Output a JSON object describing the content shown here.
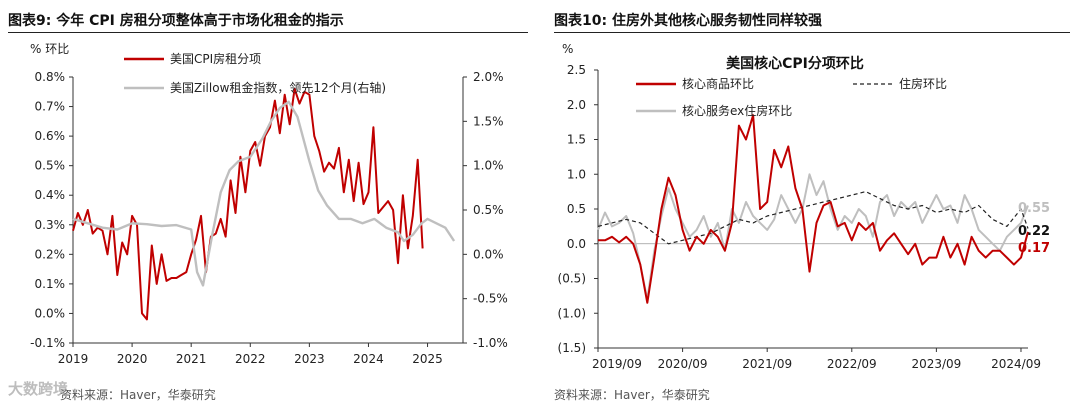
{
  "left": {
    "figure_title": "图表9:  今年 CPI 房租分项整体高于市场化租金的指示",
    "source": "资料来源：Haver，华泰研究",
    "chart_data": {
      "type": "line",
      "title": "",
      "ylabel_left": "% 环比",
      "xlabel": "",
      "x_ticks": [
        "2019",
        "2020",
        "2021",
        "2022",
        "2023",
        "2024",
        "2025"
      ],
      "xlim": [
        2019,
        2025.6
      ],
      "ylim_left": [
        -0.1,
        0.8
      ],
      "ylim_right": [
        -1.0,
        2.0
      ],
      "y_ticks_left": [
        "-0.1%",
        "0.0%",
        "0.1%",
        "0.2%",
        "0.3%",
        "0.4%",
        "0.5%",
        "0.6%",
        "0.7%",
        "0.8%"
      ],
      "y_ticks_right": [
        "-1.0%",
        "-0.5%",
        "0.0%",
        "0.5%",
        "1.0%",
        "1.5%",
        "2.0%"
      ],
      "legend_position": "top-center",
      "series": [
        {
          "name": "美国CPI房租分项",
          "axis": "left",
          "color": "#c00000",
          "x": [
            2019.0,
            2019.083,
            2019.167,
            2019.25,
            2019.333,
            2019.417,
            2019.5,
            2019.583,
            2019.667,
            2019.75,
            2019.833,
            2019.917,
            2020.0,
            2020.083,
            2020.167,
            2020.25,
            2020.333,
            2020.417,
            2020.5,
            2020.583,
            2020.667,
            2020.75,
            2020.833,
            2020.917,
            2021.0,
            2021.083,
            2021.167,
            2021.25,
            2021.333,
            2021.417,
            2021.5,
            2021.583,
            2021.667,
            2021.75,
            2021.833,
            2021.917,
            2022.0,
            2022.083,
            2022.167,
            2022.25,
            2022.333,
            2022.417,
            2022.5,
            2022.583,
            2022.667,
            2022.75,
            2022.833,
            2022.917,
            2023.0,
            2023.083,
            2023.167,
            2023.25,
            2023.333,
            2023.417,
            2023.5,
            2023.583,
            2023.667,
            2023.75,
            2023.833,
            2023.917,
            2024.0,
            2024.083,
            2024.167,
            2024.25,
            2024.333,
            2024.417,
            2024.5,
            2024.583,
            2024.667,
            2024.75,
            2024.833,
            2024.917
          ],
          "values": [
            0.28,
            0.34,
            0.3,
            0.35,
            0.27,
            0.29,
            0.28,
            0.2,
            0.33,
            0.13,
            0.24,
            0.2,
            0.33,
            0.3,
            0.0,
            -0.02,
            0.23,
            0.1,
            0.2,
            0.11,
            0.12,
            0.12,
            0.13,
            0.14,
            0.2,
            0.25,
            0.33,
            0.14,
            0.26,
            0.27,
            0.32,
            0.26,
            0.45,
            0.34,
            0.53,
            0.41,
            0.55,
            0.58,
            0.5,
            0.6,
            0.63,
            0.72,
            0.61,
            0.74,
            0.64,
            0.76,
            0.71,
            0.75,
            0.74,
            0.6,
            0.55,
            0.48,
            0.51,
            0.49,
            0.56,
            0.41,
            0.52,
            0.38,
            0.51,
            0.37,
            0.41,
            0.63,
            0.34,
            0.36,
            0.38,
            0.35,
            0.17,
            0.4,
            0.22,
            0.33,
            0.52,
            0.22
          ]
        },
        {
          "name": "美国Zillow租金指数，领先12个月(右轴)",
          "axis": "right",
          "color": "#bfbfbf",
          "x": [
            2019.0,
            2019.25,
            2019.5,
            2019.75,
            2020.0,
            2020.25,
            2020.5,
            2020.75,
            2021.0,
            2021.1,
            2021.2,
            2021.35,
            2021.5,
            2021.65,
            2021.8,
            2022.0,
            2022.2,
            2022.35,
            2022.5,
            2022.65,
            2022.8,
            2023.0,
            2023.15,
            2023.3,
            2023.5,
            2023.7,
            2023.9,
            2024.1,
            2024.3,
            2024.5,
            2024.6,
            2024.75,
            2024.9,
            2025.0,
            2025.15,
            2025.3,
            2025.45
          ],
          "values": [
            0.4,
            0.35,
            0.3,
            0.28,
            0.35,
            0.34,
            0.32,
            0.33,
            0.28,
            -0.2,
            -0.35,
            0.2,
            0.7,
            0.95,
            1.05,
            1.1,
            1.3,
            1.5,
            1.65,
            1.72,
            1.55,
            1.05,
            0.72,
            0.55,
            0.4,
            0.4,
            0.35,
            0.4,
            0.3,
            0.25,
            0.15,
            0.22,
            0.35,
            0.4,
            0.35,
            0.3,
            0.15
          ]
        }
      ]
    }
  },
  "right": {
    "figure_title": "图表10:  住房外其他核心服务韧性同样较强",
    "source": "资料来源：Haver，华泰研究",
    "chart_data": {
      "type": "line",
      "title": "美国核心CPI分项环比",
      "ylabel": "%",
      "xlabel": "",
      "x_ticks": [
        "2019/09",
        "2020/09",
        "2021/09",
        "2022/09",
        "2023/09",
        "2024/09"
      ],
      "xlim": [
        2019.667,
        2024.75
      ],
      "ylim": [
        -1.5,
        2.5
      ],
      "y_ticks": [
        "(1.5)",
        "(1.0)",
        "(0.5)",
        "0.0",
        "0.5",
        "1.0",
        "1.5",
        "2.0",
        "2.5"
      ],
      "legend_position": "top",
      "end_labels": [
        {
          "series": "核心服务ex住房环比",
          "text": "0.55",
          "color": "#bfbfbf"
        },
        {
          "series": "住房环比",
          "text": "0.22",
          "color": "#111111"
        },
        {
          "series": "核心商品环比",
          "text": "0.17",
          "color": "#c00000"
        }
      ],
      "series": [
        {
          "name": "核心商品环比",
          "style": "solid",
          "color": "#c00000",
          "x": [
            2019.667,
            2019.75,
            2019.833,
            2019.917,
            2020.0,
            2020.083,
            2020.167,
            2020.25,
            2020.333,
            2020.417,
            2020.5,
            2020.583,
            2020.667,
            2020.75,
            2020.833,
            2020.917,
            2021.0,
            2021.083,
            2021.167,
            2021.25,
            2021.333,
            2021.417,
            2021.5,
            2021.583,
            2021.667,
            2021.75,
            2021.833,
            2021.917,
            2022.0,
            2022.083,
            2022.167,
            2022.25,
            2022.333,
            2022.417,
            2022.5,
            2022.583,
            2022.667,
            2022.75,
            2022.833,
            2022.917,
            2023.0,
            2023.083,
            2023.167,
            2023.25,
            2023.333,
            2023.417,
            2023.5,
            2023.583,
            2023.667,
            2023.75,
            2023.833,
            2023.917,
            2024.0,
            2024.083,
            2024.167,
            2024.25,
            2024.333,
            2024.417,
            2024.5,
            2024.583,
            2024.667,
            2024.75
          ],
          "values": [
            0.05,
            0.05,
            0.1,
            0.02,
            0.1,
            0.0,
            -0.3,
            -0.85,
            -0.2,
            0.5,
            0.95,
            0.7,
            0.2,
            -0.1,
            0.1,
            0.0,
            0.2,
            0.1,
            -0.1,
            0.3,
            1.7,
            1.5,
            1.85,
            0.5,
            0.6,
            1.35,
            1.1,
            1.4,
            0.8,
            0.5,
            -0.4,
            0.3,
            0.55,
            0.6,
            0.25,
            0.3,
            0.05,
            0.3,
            0.2,
            0.3,
            -0.1,
            0.05,
            0.15,
            0.0,
            -0.15,
            0.0,
            -0.3,
            -0.2,
            -0.2,
            0.1,
            -0.2,
            0.0,
            -0.3,
            0.1,
            -0.1,
            -0.2,
            -0.1,
            -0.1,
            -0.2,
            -0.3,
            -0.2,
            0.17
          ]
        },
        {
          "name": "住房环比",
          "style": "dashed",
          "color": "#222222",
          "x": [
            2019.667,
            2019.833,
            2020.0,
            2020.167,
            2020.333,
            2020.5,
            2020.667,
            2020.833,
            2021.0,
            2021.167,
            2021.333,
            2021.5,
            2021.667,
            2021.833,
            2022.0,
            2022.167,
            2022.333,
            2022.5,
            2022.667,
            2022.833,
            2023.0,
            2023.167,
            2023.333,
            2023.5,
            2023.667,
            2023.833,
            2024.0,
            2024.167,
            2024.333,
            2024.5,
            2024.667,
            2024.75
          ],
          "values": [
            0.25,
            0.3,
            0.35,
            0.3,
            0.15,
            0.0,
            0.05,
            0.1,
            0.15,
            0.25,
            0.35,
            0.3,
            0.4,
            0.45,
            0.5,
            0.55,
            0.6,
            0.65,
            0.7,
            0.75,
            0.65,
            0.55,
            0.5,
            0.55,
            0.45,
            0.5,
            0.45,
            0.55,
            0.35,
            0.25,
            0.5,
            0.22
          ]
        },
        {
          "name": "核心服务ex住房环比",
          "style": "solid",
          "color": "#bfbfbf",
          "x": [
            2019.667,
            2019.75,
            2019.833,
            2019.917,
            2020.0,
            2020.083,
            2020.167,
            2020.25,
            2020.333,
            2020.417,
            2020.5,
            2020.583,
            2020.667,
            2020.75,
            2020.833,
            2020.917,
            2021.0,
            2021.083,
            2021.167,
            2021.25,
            2021.333,
            2021.417,
            2021.5,
            2021.583,
            2021.667,
            2021.75,
            2021.833,
            2021.917,
            2022.0,
            2022.083,
            2022.167,
            2022.25,
            2022.333,
            2022.417,
            2022.5,
            2022.583,
            2022.667,
            2022.75,
            2022.833,
            2022.917,
            2023.0,
            2023.083,
            2023.167,
            2023.25,
            2023.333,
            2023.417,
            2023.5,
            2023.583,
            2023.667,
            2023.75,
            2023.833,
            2023.917,
            2024.0,
            2024.083,
            2024.167,
            2024.25,
            2024.333,
            2024.417,
            2024.5,
            2024.583,
            2024.667,
            2024.75
          ],
          "values": [
            0.2,
            0.45,
            0.25,
            0.3,
            0.4,
            0.15,
            -0.3,
            -0.8,
            -0.1,
            0.4,
            0.8,
            0.5,
            0.3,
            0.1,
            0.2,
            0.4,
            0.1,
            0.3,
            -0.1,
            0.5,
            0.3,
            0.6,
            0.4,
            0.3,
            0.2,
            0.35,
            0.7,
            0.5,
            0.3,
            0.5,
            1.0,
            0.7,
            0.9,
            0.5,
            0.2,
            0.4,
            0.3,
            0.5,
            0.4,
            0.1,
            0.6,
            0.7,
            0.4,
            0.6,
            0.5,
            0.6,
            0.3,
            0.5,
            0.7,
            0.5,
            0.55,
            0.3,
            0.7,
            0.5,
            0.2,
            0.1,
            0.0,
            -0.1,
            0.1,
            0.2,
            0.3,
            0.55
          ]
        }
      ]
    }
  },
  "watermark": "大数跨境"
}
